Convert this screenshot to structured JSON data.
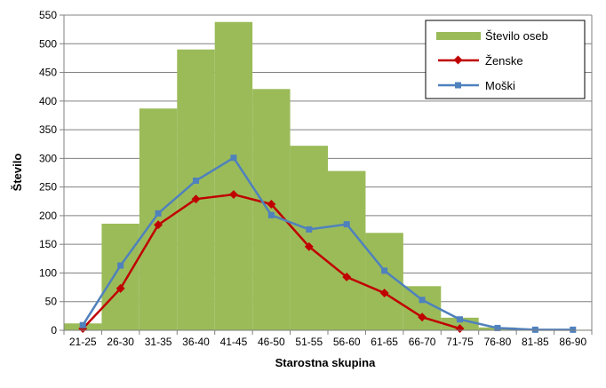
{
  "chart_data": {
    "type": "bar",
    "title": "",
    "xlabel": "Starostna skupina",
    "ylabel": "Število",
    "ylim": [
      0,
      550
    ],
    "ytick_step": 50,
    "grid": true,
    "legend_placement": "top-right",
    "categories": [
      "21-25",
      "26-30",
      "31-35",
      "36-40",
      "41-45",
      "46-50",
      "51-55",
      "56-60",
      "61-65",
      "66-70",
      "71-75",
      "76-80",
      "81-85",
      "86-90"
    ],
    "series": [
      {
        "name": "Število oseb",
        "kind": "bar",
        "color": "#9bbb59",
        "values": [
          12,
          186,
          387,
          490,
          538,
          421,
          322,
          278,
          170,
          77,
          22,
          5,
          1,
          1
        ]
      },
      {
        "name": "Ženske",
        "kind": "line",
        "marker": "diamond",
        "color": "#c00000",
        "values": [
          3,
          73,
          184,
          229,
          237,
          220,
          146,
          93,
          65,
          23,
          3,
          null,
          null,
          null
        ]
      },
      {
        "name": "Moški",
        "kind": "line",
        "marker": "square",
        "color": "#4f81bd",
        "values": [
          9,
          113,
          204,
          261,
          301,
          201,
          176,
          185,
          104,
          53,
          19,
          4,
          1,
          1
        ]
      }
    ]
  }
}
